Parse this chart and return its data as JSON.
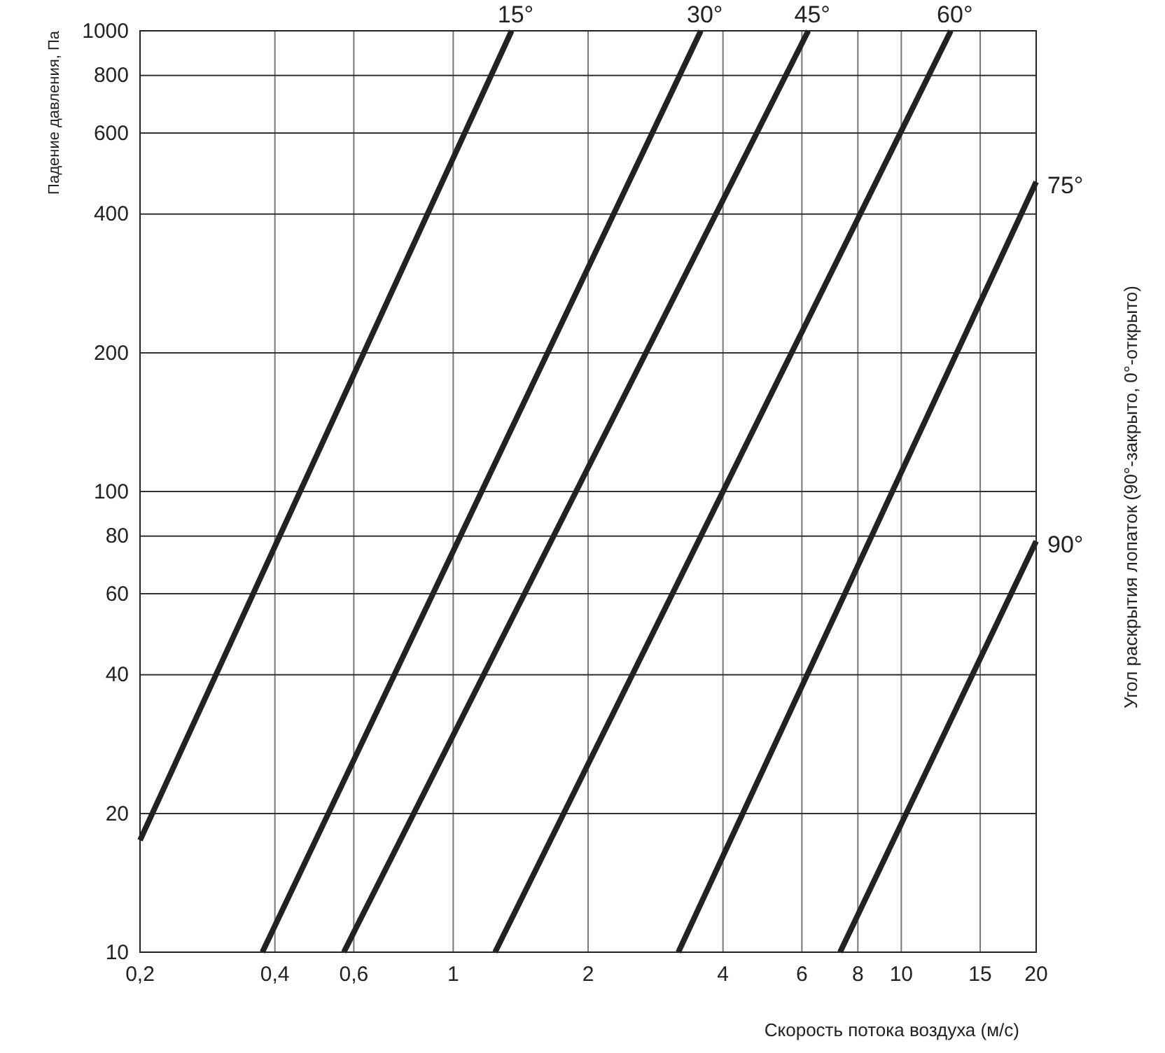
{
  "chart_data": {
    "type": "line",
    "ylabel": "Падение давления, Па",
    "xlabel": "Скорость потока воздуха (м/с)",
    "annotations": [
      "Угол раскрытия лопаток (90°-закрыто, 0°-открыто)"
    ],
    "log": "xy",
    "grid": true,
    "marker": "none",
    "line_style": "solid",
    "xlim": [
      0.2,
      20
    ],
    "xticks": [
      {
        "value": 0.2,
        "label": "0,2"
      },
      {
        "value": 0.4,
        "label": "0,4"
      },
      {
        "value": 0.6,
        "label": "0,6"
      },
      1,
      2,
      4,
      6,
      8,
      10,
      15,
      20
    ],
    "ylim": [
      10,
      1000
    ],
    "yticks": [
      10,
      20,
      40,
      60,
      80,
      100,
      200,
      400,
      600,
      800,
      1000
    ],
    "series": [
      {
        "name": "15°",
        "color": "#222222",
        "x": [
          0.2,
          1.35
        ],
        "values": [
          17.5,
          1000
        ]
      },
      {
        "name": "30°",
        "color": "#222222",
        "x": [
          0.375,
          3.57
        ],
        "values": [
          10,
          1000
        ]
      },
      {
        "name": "45°",
        "color": "#222222",
        "x": [
          0.57,
          6.2
        ],
        "values": [
          10,
          1000
        ]
      },
      {
        "name": "60°",
        "color": "#222222",
        "x": [
          1.24,
          12.9
        ],
        "values": [
          10,
          1000
        ]
      },
      {
        "name": "75°",
        "color": "#222222",
        "x": [
          3.18,
          20
        ],
        "values": [
          10,
          470
        ]
      },
      {
        "name": "90°",
        "color": "#222222",
        "x": [
          7.3,
          20
        ],
        "values": [
          10,
          78
        ]
      }
    ]
  }
}
